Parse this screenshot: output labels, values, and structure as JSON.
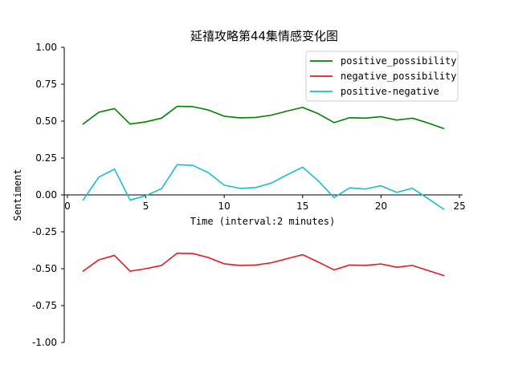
{
  "chart_data": {
    "type": "line",
    "title": "延禧攻略第44集情感变化图",
    "xlabel": "Time (interval:2 minutes)",
    "ylabel": "Sentiment",
    "xlim": [
      -0.2,
      25.2
    ],
    "ylim": [
      -1.0,
      1.0
    ],
    "xticks": [
      0,
      5,
      10,
      15,
      20,
      25
    ],
    "xtick_labels": [
      "0",
      "5",
      "10",
      "15",
      "20",
      "25"
    ],
    "yticks": [
      1.0,
      0.75,
      0.5,
      0.25,
      0.0,
      -0.25,
      -0.5,
      -0.75,
      -1.0
    ],
    "ytick_labels": [
      "1.00",
      "0.75",
      "0.50",
      "0.25",
      "0.00",
      "-0.25",
      "-0.50",
      "-0.75",
      "-1.00"
    ],
    "grid": false,
    "legend_position": "top-right",
    "x": [
      1,
      2,
      3,
      4,
      5,
      6,
      7,
      8,
      9,
      10,
      11,
      12,
      13,
      14,
      15,
      16,
      17,
      18,
      19,
      20,
      21,
      22,
      23,
      24
    ],
    "series": [
      {
        "name": "positive_possibility",
        "color": "#008000",
        "values": [
          0.48,
          0.56,
          0.585,
          0.48,
          0.495,
          0.52,
          0.6,
          0.598,
          0.575,
          0.533,
          0.522,
          0.525,
          0.54,
          0.568,
          0.593,
          0.55,
          0.49,
          0.523,
          0.52,
          0.53,
          0.507,
          0.52,
          0.487,
          0.45
        ]
      },
      {
        "name": "negative_possibility",
        "color": "#e31a1c",
        "values": [
          -0.517,
          -0.44,
          -0.41,
          -0.517,
          -0.5,
          -0.478,
          -0.395,
          -0.397,
          -0.425,
          -0.467,
          -0.478,
          -0.475,
          -0.46,
          -0.432,
          -0.405,
          -0.455,
          -0.508,
          -0.475,
          -0.478,
          -0.468,
          -0.49,
          -0.478,
          -0.512,
          -0.547
        ]
      },
      {
        "name": "positive-negative",
        "color": "#17becf",
        "values": [
          -0.035,
          0.12,
          0.175,
          -0.035,
          -0.005,
          0.042,
          0.205,
          0.2,
          0.15,
          0.066,
          0.044,
          0.05,
          0.08,
          0.136,
          0.188,
          0.095,
          -0.018,
          0.048,
          0.04,
          0.062,
          0.017,
          0.045,
          -0.025,
          -0.097
        ]
      }
    ]
  }
}
